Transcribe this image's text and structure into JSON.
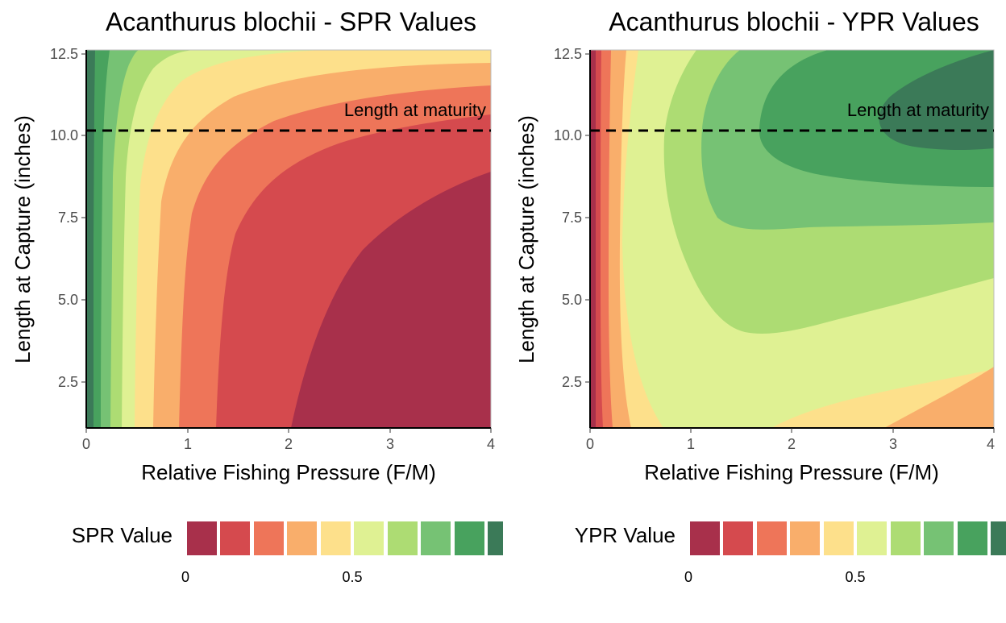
{
  "chart_data": [
    {
      "type": "contour",
      "title": "Acanthurus blochii - SPR Values",
      "xlabel": "Relative Fishing Pressure (F/M)",
      "ylabel": "Length at Capture (inches)",
      "xlim": [
        0,
        4
      ],
      "ylim": [
        1,
        12.5
      ],
      "xticks": [
        0,
        1,
        2,
        3,
        4
      ],
      "yticks": [
        2.5,
        5.0,
        7.5,
        10.0,
        12.5
      ],
      "x_tick_labels": [
        "0",
        "1",
        "2",
        "3",
        "4"
      ],
      "y_tick_labels": [
        "2.5",
        "5.0",
        "7.5",
        "10.0",
        "12.5"
      ],
      "annotation": {
        "text": "Length at maturity",
        "y": 10.1
      },
      "legend": {
        "title": "SPR Value",
        "position": "bottom",
        "tick_labels": [
          "0",
          "0.5"
        ],
        "breaks": [
          0,
          0.1,
          0.2,
          0.3,
          0.4,
          0.5,
          0.6,
          0.7,
          0.8,
          0.9,
          1.0
        ]
      },
      "contour_lines": [
        {
          "level": 0.1,
          "points": [
            [
              2.02,
              1
            ],
            [
              2.2,
              3.0
            ],
            [
              2.45,
              4.8
            ],
            [
              2.8,
              6.5
            ],
            [
              3.3,
              7.9
            ],
            [
              4.0,
              8.9
            ]
          ]
        },
        {
          "level": 0.2,
          "points": [
            [
              1.28,
              1
            ],
            [
              1.35,
              3.5
            ],
            [
              1.45,
              5.5
            ],
            [
              1.6,
              7.0
            ],
            [
              1.9,
              8.3
            ],
            [
              2.4,
              9.3
            ],
            [
              3.2,
              10.0
            ],
            [
              4.0,
              10.4
            ]
          ]
        },
        {
          "level": 0.3,
          "points": [
            [
              0.92,
              1
            ],
            [
              0.95,
              4
            ],
            [
              1.02,
              6.5
            ],
            [
              1.15,
              8.2
            ],
            [
              1.4,
              9.6
            ],
            [
              1.9,
              10.6
            ],
            [
              2.8,
              11.3
            ],
            [
              4.0,
              11.7
            ]
          ]
        },
        {
          "level": 0.4,
          "points": [
            [
              0.66,
              1
            ],
            [
              0.68,
              5
            ],
            [
              0.74,
              7.8
            ],
            [
              0.88,
              9.8
            ],
            [
              1.15,
              11.0
            ],
            [
              1.7,
              11.9
            ],
            [
              2.6,
              12.3
            ],
            [
              4.0,
              12.5
            ]
          ]
        },
        {
          "level": 0.5,
          "points": [
            [
              0.48,
              1
            ],
            [
              0.49,
              6
            ],
            [
              0.53,
              9.0
            ],
            [
              0.65,
              11.0
            ],
            [
              0.85,
              12.0
            ],
            [
              1.2,
              12.5
            ]
          ]
        },
        {
          "level": 0.6,
          "points": [
            [
              0.35,
              1
            ],
            [
              0.36,
              6
            ],
            [
              0.39,
              9.5
            ],
            [
              0.47,
              11.5
            ],
            [
              0.6,
              12.5
            ]
          ]
        },
        {
          "level": 0.7,
          "points": [
            [
              0.24,
              1
            ],
            [
              0.25,
              6
            ],
            [
              0.27,
              10
            ],
            [
              0.33,
              12.0
            ],
            [
              0.38,
              12.5
            ]
          ]
        },
        {
          "level": 0.8,
          "points": [
            [
              0.14,
              1
            ],
            [
              0.15,
              6
            ],
            [
              0.17,
              10.5
            ],
            [
              0.21,
              12.5
            ]
          ]
        },
        {
          "level": 0.9,
          "points": [
            [
              0.07,
              1
            ],
            [
              0.07,
              8
            ],
            [
              0.08,
              12.5
            ]
          ]
        }
      ]
    },
    {
      "type": "contour",
      "title": "Acanthurus blochii - YPR Values",
      "xlabel": "Relative Fishing Pressure (F/M)",
      "ylabel": "Length at Capture (inches)",
      "xlim": [
        0,
        4
      ],
      "ylim": [
        1,
        12.5
      ],
      "xticks": [
        0,
        1,
        2,
        3,
        4
      ],
      "yticks": [
        2.5,
        5.0,
        7.5,
        10.0,
        12.5
      ],
      "x_tick_labels": [
        "0",
        "1",
        "2",
        "3",
        "4"
      ],
      "y_tick_labels": [
        "2.5",
        "5.0",
        "7.5",
        "10.0",
        "12.5"
      ],
      "annotation": {
        "text": "Length at maturity",
        "y": 10.1
      },
      "legend": {
        "title": "YPR Value",
        "position": "bottom",
        "tick_labels": [
          "0",
          "0.5"
        ],
        "breaks": [
          0,
          0.1,
          0.2,
          0.3,
          0.4,
          0.5,
          0.6,
          0.7,
          0.8,
          0.9,
          1.0
        ]
      },
      "contour_lines": [
        {
          "level": 0.1,
          "points": [
            [
              0.05,
              1
            ],
            [
              0.05,
              12.5
            ]
          ]
        },
        {
          "level": 0.2,
          "points": [
            [
              0.15,
              1
            ],
            [
              0.14,
              7
            ],
            [
              0.14,
              12.5
            ]
          ]
        },
        {
          "level": 0.3,
          "points": [
            [
              0.26,
              1
            ],
            [
              0.24,
              7
            ],
            [
              0.23,
              12.5
            ]
          ]
        },
        {
          "level": 0.4,
          "points": [
            [
              0.42,
              1
            ],
            [
              0.38,
              6
            ],
            [
              0.36,
              10
            ],
            [
              0.37,
              12.5
            ]
          ]
        },
        {
          "level": 0.5,
          "points": [
            [
              0.72,
              1
            ],
            [
              0.66,
              3
            ],
            [
              0.61,
              6
            ],
            [
              0.58,
              9
            ],
            [
              0.58,
              11
            ],
            [
              0.65,
              12.5
            ]
          ]
        },
        {
          "level": 0.4,
          "points": [
            [
              1.8,
              1
            ],
            [
              2.2,
              1.5
            ],
            [
              2.8,
              2.1
            ],
            [
              3.4,
              2.5
            ],
            [
              4.0,
              2.7
            ]
          ]
        },
        {
          "level": 0.3,
          "points": [
            [
              2.9,
              1
            ],
            [
              3.3,
              1.6
            ],
            [
              3.7,
              2.3
            ],
            [
              4.0,
              2.9
            ]
          ]
        },
        {
          "level": 0.6,
          "points": [
            [
              1.0,
              12.5
            ],
            [
              0.82,
              11.5
            ],
            [
              0.77,
              10
            ],
            [
              0.8,
              8
            ],
            [
              0.95,
              6
            ],
            [
              1.15,
              4.5
            ],
            [
              1.4,
              4.0
            ],
            [
              1.8,
              4.2
            ],
            [
              2.5,
              4.8
            ],
            [
              3.3,
              5.5
            ],
            [
              4.0,
              6.0
            ]
          ]
        },
        {
          "level": 0.7,
          "points": [
            [
              1.7,
              12.5
            ],
            [
              1.3,
              11.3
            ],
            [
              1.15,
              10
            ],
            [
              1.15,
              8.8
            ],
            [
              1.3,
              7.6
            ],
            [
              1.6,
              7.0
            ],
            [
              2.2,
              6.9
            ],
            [
              3.1,
              7.1
            ],
            [
              4.0,
              7.3
            ]
          ]
        },
        {
          "level": 0.8,
          "points": [
            [
              2.6,
              12.5
            ],
            [
              2.05,
              11.5
            ],
            [
              1.8,
              10.3
            ],
            [
              1.9,
              9.5
            ],
            [
              2.3,
              9.0
            ],
            [
              3.0,
              8.7
            ],
            [
              4.0,
              8.5
            ]
          ]
        },
        {
          "level": 0.9,
          "points": [
            [
              4.0,
              12.5
            ],
            [
              3.2,
              12.0
            ],
            [
              2.8,
              11.3
            ],
            [
              2.9,
              10.6
            ],
            [
              3.3,
              10.1
            ],
            [
              4.0,
              9.9
            ]
          ]
        }
      ]
    }
  ]
}
